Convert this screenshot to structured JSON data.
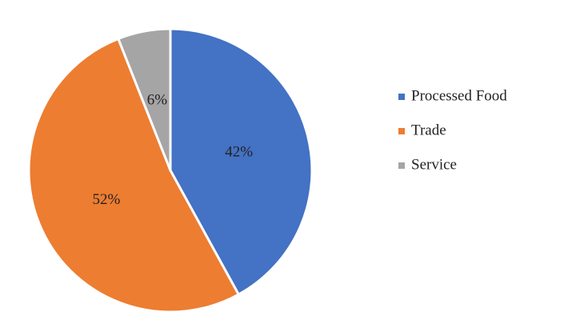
{
  "chart_data": {
    "type": "pie",
    "categories": [
      "Processed Food",
      "Trade",
      "Service"
    ],
    "values": [
      42,
      52,
      6
    ],
    "value_labels": [
      "42%",
      "52%",
      "6%"
    ],
    "colors": [
      "#4472c4",
      "#ed7d31",
      "#a5a5a5"
    ],
    "legend": "right"
  }
}
